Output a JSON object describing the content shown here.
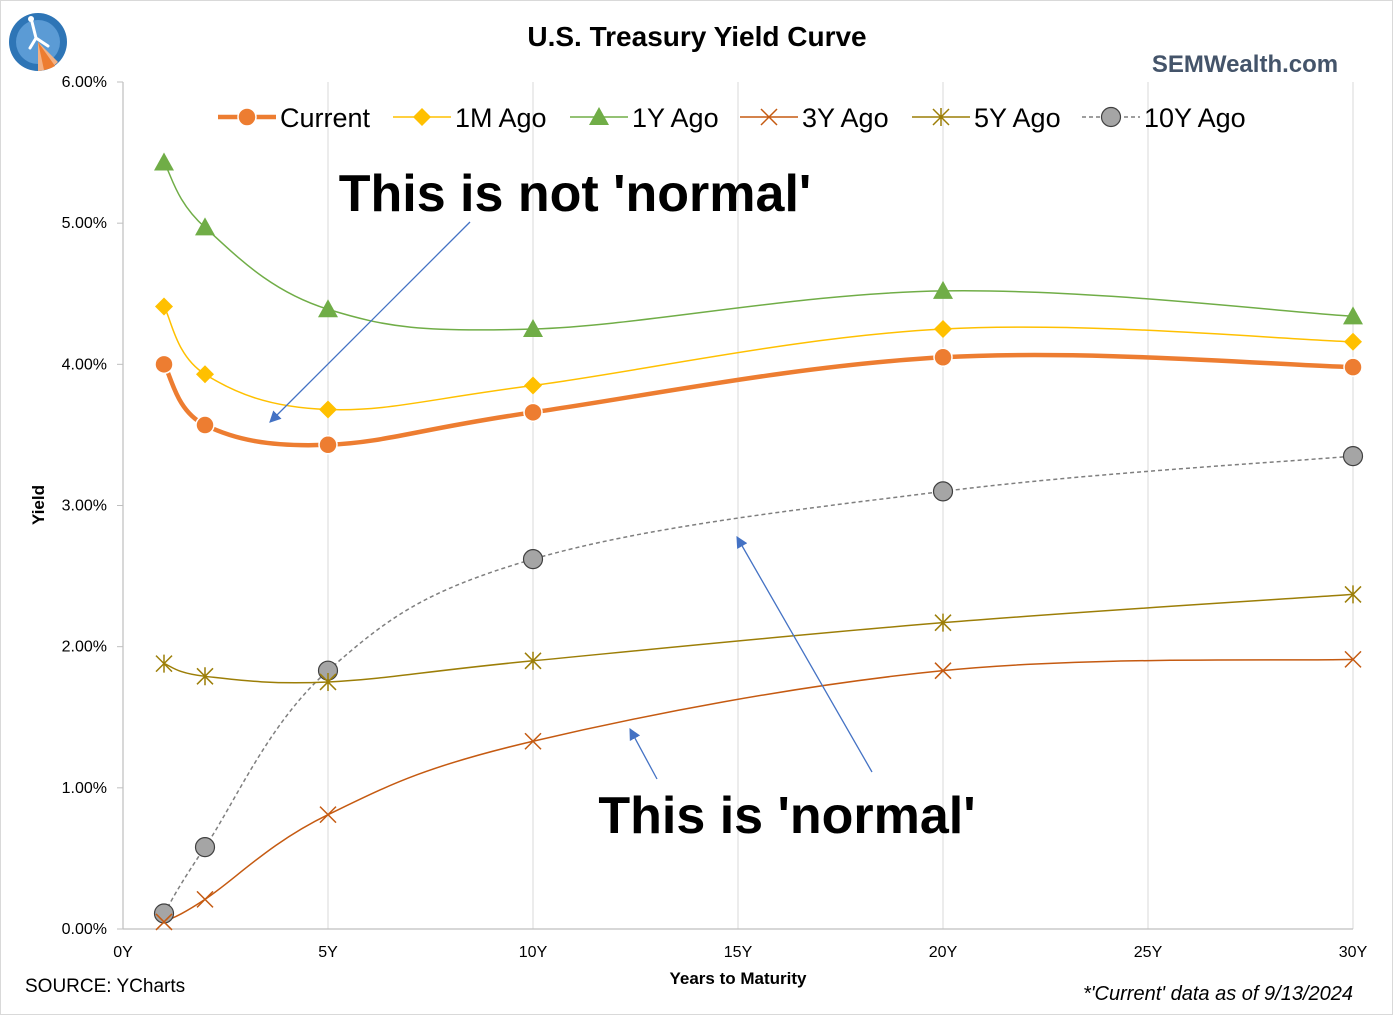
{
  "chart_data": {
    "type": "line",
    "title": "U.S. Treasury Yield Curve",
    "watermark": "SEMWealth.com",
    "xlabel": "Years to Maturity",
    "ylabel": "Yield",
    "x_ticks": [
      "0Y",
      "5Y",
      "10Y",
      "15Y",
      "20Y",
      "25Y",
      "30Y"
    ],
    "y_ticks": [
      "0.00%",
      "1.00%",
      "2.00%",
      "3.00%",
      "4.00%",
      "5.00%",
      "6.00%"
    ],
    "xlim": [
      0,
      30
    ],
    "ylim": [
      0,
      6
    ],
    "grid": "vertical",
    "legend_position": "top",
    "x": [
      1,
      2,
      5,
      10,
      20,
      30
    ],
    "series": [
      {
        "name": "Current",
        "values": [
          4.0,
          3.57,
          3.43,
          3.66,
          4.05,
          3.98
        ],
        "color": "#ED7D31",
        "marker": "circle",
        "dash": "solid",
        "width": 4.5
      },
      {
        "name": "1M Ago",
        "values": [
          4.41,
          3.93,
          3.68,
          3.85,
          4.25,
          4.16
        ],
        "color": "#FFC000",
        "marker": "diamond",
        "dash": "solid",
        "width": 1.5
      },
      {
        "name": "1Y Ago",
        "values": [
          5.43,
          4.97,
          4.39,
          4.25,
          4.52,
          4.34
        ],
        "color": "#70AD47",
        "marker": "triangle",
        "dash": "solid",
        "width": 1.5
      },
      {
        "name": "3Y Ago",
        "values": [
          0.05,
          0.21,
          0.81,
          1.33,
          1.83,
          1.91
        ],
        "color": "#C55A11",
        "marker": "x",
        "dash": "solid",
        "width": 1.5
      },
      {
        "name": "5Y Ago",
        "values": [
          1.88,
          1.79,
          1.75,
          1.9,
          2.17,
          2.37
        ],
        "color": "#9C7E07",
        "marker": "star",
        "dash": "solid",
        "width": 1.5
      },
      {
        "name": "10Y Ago",
        "values": [
          0.11,
          0.58,
          1.83,
          2.62,
          3.1,
          3.35
        ],
        "color": "#7F7F7F",
        "marker": "circle-gray",
        "dash": "4,3",
        "width": 1.5
      }
    ],
    "annotations": [
      {
        "text": "This is not 'normal'"
      },
      {
        "text": "This is 'normal'"
      }
    ],
    "source": "SOURCE: YCharts",
    "footnote": "*'Current' data as of 9/13/2024",
    "colors": {
      "axis": "#bfbfbf",
      "grid": "#d9d9d9",
      "arrow": "#4472C4",
      "text": "#000000",
      "watermark": "#44546A"
    }
  }
}
